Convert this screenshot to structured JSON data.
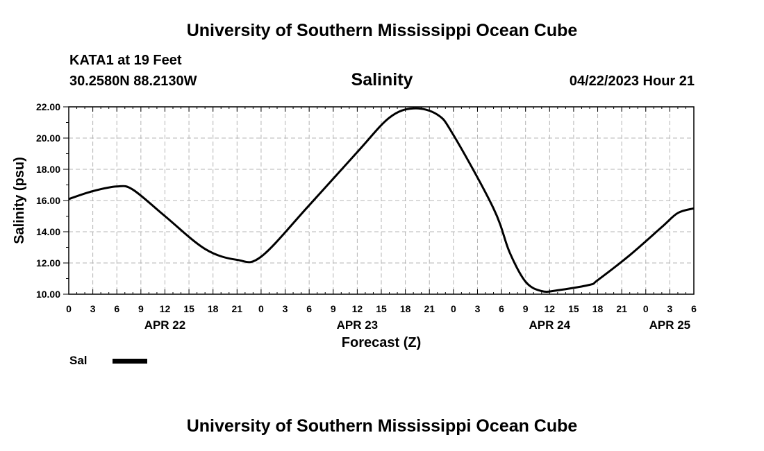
{
  "header": {
    "title": "University of Southern Mississippi Ocean Cube",
    "station": "KATA1 at 19 Feet",
    "coords": "30.2580N  88.2130W",
    "subtitle": "Salinity",
    "datetime": "04/22/2023 Hour 21"
  },
  "footer": {
    "title": "University of Southern Mississippi Ocean Cube"
  },
  "legend": {
    "label": "Sal",
    "color": "#000000"
  },
  "chart_data": {
    "type": "line",
    "title": "Salinity",
    "xlabel": "Forecast (Z)",
    "ylabel": "Salinity (psu)",
    "ylim": [
      10,
      22
    ],
    "xlim": [
      0,
      78
    ],
    "yticks": [
      "10.00",
      "12.00",
      "14.00",
      "16.00",
      "18.00",
      "20.00",
      "22.00"
    ],
    "x_tick_labels": [
      "0",
      "3",
      "6",
      "9",
      "12",
      "15",
      "18",
      "21",
      "0",
      "3",
      "6",
      "9",
      "12",
      "15",
      "18",
      "21",
      "0",
      "3",
      "6",
      "9",
      "12",
      "15",
      "18",
      "21",
      "0",
      "3",
      "6"
    ],
    "date_labels": [
      {
        "text": "APR 22",
        "hour": 12
      },
      {
        "text": "APR 23",
        "hour": 36
      },
      {
        "text": "APR 24",
        "hour": 60
      },
      {
        "text": "APR 25",
        "hour": 75
      }
    ],
    "grid": true,
    "series": [
      {
        "name": "Sal",
        "color": "#000000",
        "x": [
          0,
          3,
          6,
          8,
          12,
          17,
          21,
          24,
          30,
          36,
          40,
          43,
          46,
          48,
          53,
          55,
          57,
          59,
          61,
          65,
          66,
          70,
          74,
          76,
          78
        ],
        "values": [
          16.1,
          16.6,
          16.9,
          16.7,
          15.0,
          12.9,
          12.2,
          12.4,
          15.7,
          19.1,
          21.3,
          21.9,
          21.5,
          20.2,
          15.5,
          12.7,
          10.8,
          10.2,
          10.25,
          10.6,
          10.9,
          12.5,
          14.3,
          15.2,
          15.5
        ]
      }
    ]
  }
}
